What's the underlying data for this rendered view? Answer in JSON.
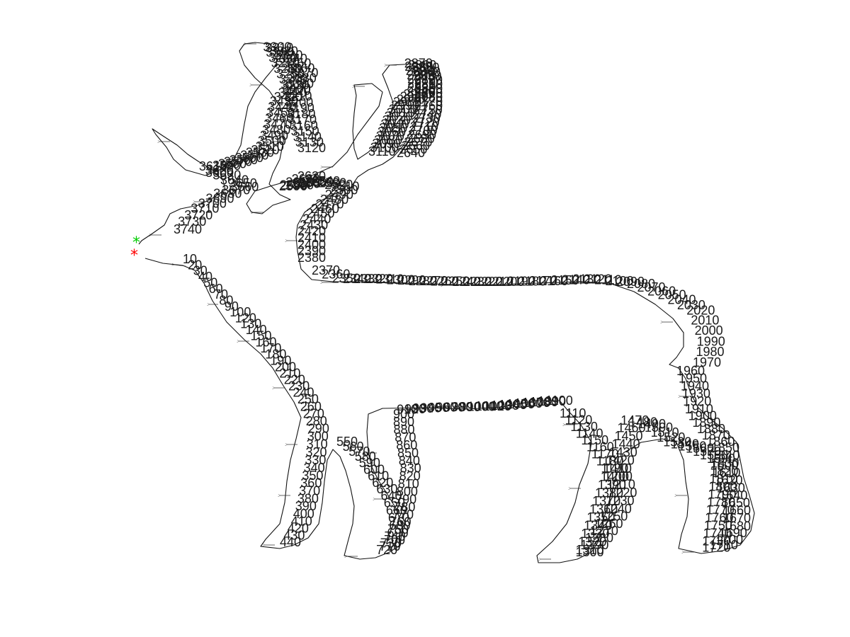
{
  "figure": {
    "markers": {
      "start": {
        "symbol": "*",
        "color": "#ff0000"
      },
      "end": {
        "symbol": "*",
        "color": "#00cc00"
      }
    },
    "outline_color": "#111111",
    "arrow_color": "#222222",
    "label_color": "#1a1a1a",
    "point_labels": {
      "legs_front": [
        "10",
        "20",
        "30",
        "40",
        "50",
        "60",
        "70",
        "80",
        "90",
        "100",
        "120",
        "130",
        "140",
        "150",
        "160",
        "170",
        "180",
        "190",
        "200",
        "210",
        "220",
        "230",
        "240",
        "250",
        "260",
        "270",
        "280",
        "290",
        "300",
        "310",
        "320",
        "330",
        "340",
        "350",
        "360",
        "370",
        "380",
        "390",
        "400",
        "410",
        "420",
        "430",
        "440"
      ],
      "front_leg_inner": [
        "550",
        "560",
        "570",
        "580",
        "590",
        "600",
        "610",
        "620",
        "630",
        "640",
        "650",
        "660",
        "670",
        "680",
        "690",
        "700",
        "710",
        "720",
        "730",
        "740",
        "750",
        "760",
        "770",
        "780",
        "790",
        "800",
        "810",
        "820",
        "830",
        "840",
        "850",
        "860",
        "870",
        "880",
        "890",
        "900",
        "910",
        "920",
        "930",
        "940",
        "950",
        "960",
        "970",
        "980",
        "990",
        "1000",
        "1010",
        "1020",
        "1030",
        "1040",
        "1050",
        "1060",
        "1070",
        "1080",
        "1090",
        "1100"
      ],
      "belly_hind": [
        "1110",
        "1120",
        "1130",
        "1140",
        "1150",
        "1160",
        "1170",
        "1180",
        "1190",
        "1200",
        "1210",
        "1220",
        "1230",
        "1240",
        "1250",
        "1260",
        "1270",
        "1280",
        "1290",
        "1300",
        "1310",
        "1320",
        "1330",
        "1340",
        "1350",
        "1360",
        "1370",
        "1380",
        "1390",
        "1400",
        "1410",
        "1420",
        "1430",
        "1440",
        "1450",
        "1460",
        "1470",
        "1480",
        "1490"
      ],
      "hind_leg_back": [
        "1500",
        "1510",
        "1520",
        "1530",
        "1540",
        "1550",
        "1560",
        "1570",
        "1580",
        "1590",
        "1600",
        "1610",
        "1620",
        "1630",
        "1640",
        "1650",
        "1660",
        "1670",
        "1680",
        "1690",
        "1700",
        "1710",
        "1720",
        "1730",
        "1740",
        "1750",
        "1760",
        "1770",
        "1780",
        "1790",
        "1800",
        "1810",
        "1820",
        "1830",
        "1840",
        "1850",
        "1860",
        "1870",
        "1880",
        "1890",
        "1900",
        "1910",
        "1920",
        "1930",
        "1940",
        "1950",
        "1960"
      ],
      "rump_back": [
        "1970",
        "1980",
        "1990",
        "2000",
        "2010",
        "2020",
        "2030",
        "2040",
        "2050",
        "2060",
        "2070",
        "2080",
        "2090",
        "2100",
        "2110",
        "2120",
        "2130",
        "2140",
        "2150",
        "2160",
        "2170",
        "2180",
        "2190",
        "2200",
        "2210",
        "2220",
        "2230",
        "2240",
        "2250",
        "2260",
        "2270",
        "2280",
        "2290",
        "2300",
        "2310",
        "2320",
        "2330",
        "2340",
        "2350",
        "2360",
        "2370"
      ],
      "neck_back": [
        "2380",
        "2390",
        "2400",
        "2410",
        "2420",
        "2430",
        "2440",
        "2450",
        "2460",
        "2470",
        "2480",
        "2490",
        "2500",
        "2510",
        "2520",
        "2530",
        "2540",
        "2550",
        "2560",
        "2570",
        "2580",
        "2590",
        "2600",
        "2610",
        "2620",
        "2630"
      ],
      "right_antler": [
        "2640",
        "2650",
        "2660",
        "2670",
        "2680",
        "2690",
        "2700",
        "2710",
        "2720",
        "2730",
        "2740",
        "2750",
        "2760",
        "2770",
        "2780",
        "2790",
        "2800",
        "2810",
        "2820",
        "2830",
        "2840",
        "2850",
        "2860",
        "2870",
        "2880",
        "2890",
        "2900",
        "2910",
        "2920",
        "2930",
        "2940",
        "2950",
        "2960",
        "2970",
        "2980",
        "2990",
        "3000",
        "3010",
        "3020",
        "3030",
        "3040",
        "3050",
        "3060",
        "3070",
        "3080",
        "3090",
        "3100",
        "3110"
      ],
      "left_antler": [
        "3120",
        "3130",
        "3140",
        "3150",
        "3160",
        "3170",
        "3180",
        "3190",
        "3200",
        "3210",
        "3220",
        "3230",
        "3240",
        "3250",
        "3260",
        "3270",
        "3280",
        "3290",
        "3300",
        "3310",
        "3320",
        "3330",
        "3340",
        "3350",
        "3360",
        "3370",
        "3380",
        "3390",
        "3400",
        "3410",
        "3420",
        "3430",
        "3440",
        "3450",
        "3460",
        "3470",
        "3480",
        "3490",
        "3500",
        "3510",
        "3520",
        "3530",
        "3540",
        "3550",
        "3560",
        "3570",
        "3580",
        "3590"
      ],
      "head_tip": [
        "3600",
        "3610",
        "3620",
        "3630",
        "3640",
        "3650",
        "3660",
        "3670",
        "3680",
        "3690",
        "3700",
        "3710",
        "3720",
        "3730",
        "3740"
      ]
    }
  }
}
